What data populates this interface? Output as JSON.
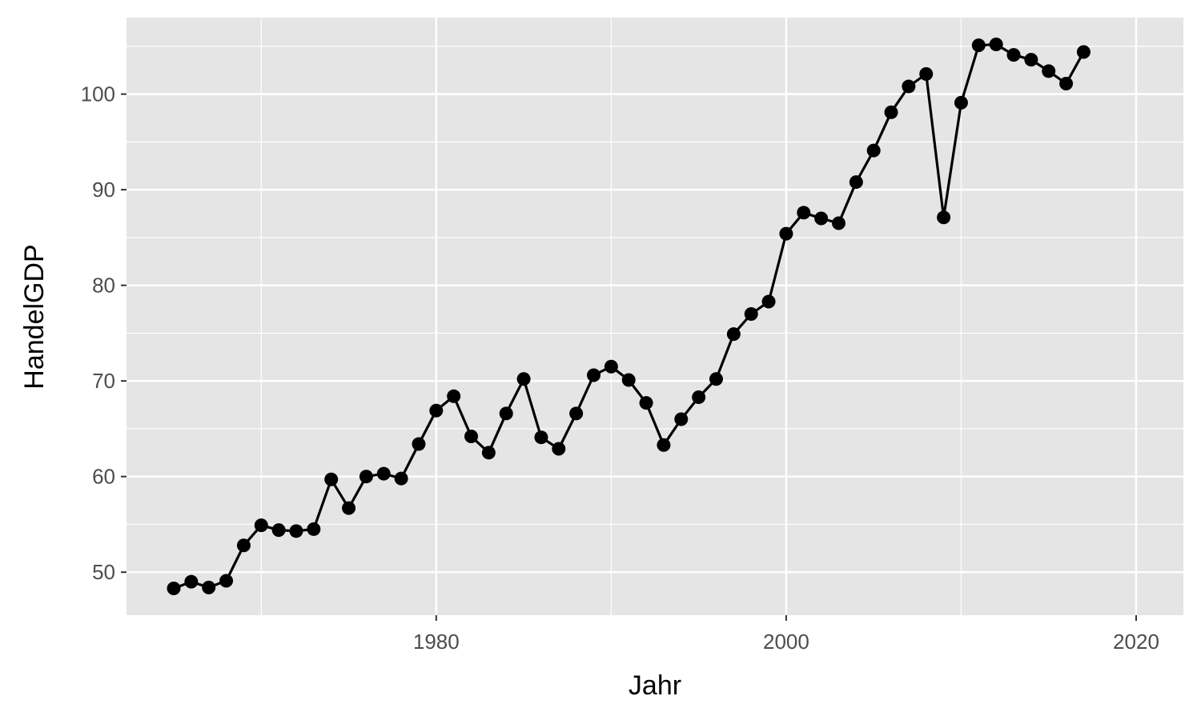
{
  "chart_data": {
    "type": "line",
    "xlabel": "Jahr",
    "ylabel": "HandelGDP",
    "xlim": [
      1962.3,
      2022.7
    ],
    "ylim": [
      45.5,
      108.0
    ],
    "x_ticks": [
      1980,
      2000,
      2020
    ],
    "x_tick_labels": [
      "1980",
      "2000",
      "2020"
    ],
    "x_minor_ticks": [
      1970,
      1990,
      2010
    ],
    "y_ticks": [
      50,
      60,
      70,
      80,
      90,
      100
    ],
    "y_tick_labels": [
      "50",
      "60",
      "70",
      "80",
      "90",
      "100"
    ],
    "y_minor_ticks": [
      55,
      65,
      75,
      85,
      95,
      105
    ],
    "grid": true,
    "legend": "none",
    "colors": {
      "panel": "#e5e5e5",
      "grid": "#ffffff",
      "line": "#000000",
      "point": "#000000"
    },
    "series": [
      {
        "x": [
          1965,
          1966,
          1967,
          1968,
          1969,
          1970,
          1971,
          1972,
          1973,
          1974,
          1975,
          1976,
          1977,
          1978,
          1979,
          1980,
          1981,
          1982,
          1983,
          1984,
          1985,
          1986,
          1987,
          1988,
          1989,
          1990,
          1991,
          1992,
          1993,
          1994,
          1995,
          1996,
          1997,
          1998,
          1999,
          2000,
          2001,
          2002,
          2003,
          2004,
          2005,
          2006,
          2007,
          2008,
          2009,
          2010,
          2011,
          2012,
          2013,
          2014,
          2015,
          2016,
          2017
        ],
        "y": [
          48.3,
          49.0,
          48.4,
          49.1,
          52.8,
          54.9,
          54.4,
          54.3,
          54.5,
          59.7,
          56.7,
          60.0,
          60.3,
          59.8,
          63.4,
          66.9,
          68.4,
          64.2,
          62.5,
          66.6,
          70.2,
          64.1,
          62.9,
          66.6,
          70.6,
          71.5,
          70.1,
          67.7,
          63.3,
          66.0,
          68.3,
          70.2,
          74.9,
          77.0,
          78.3,
          85.4,
          87.6,
          87.0,
          86.5,
          90.8,
          94.1,
          98.1,
          100.8,
          102.1,
          87.1,
          99.1,
          105.1,
          105.2,
          104.1,
          103.6,
          102.4,
          101.1,
          104.4
        ]
      }
    ]
  }
}
